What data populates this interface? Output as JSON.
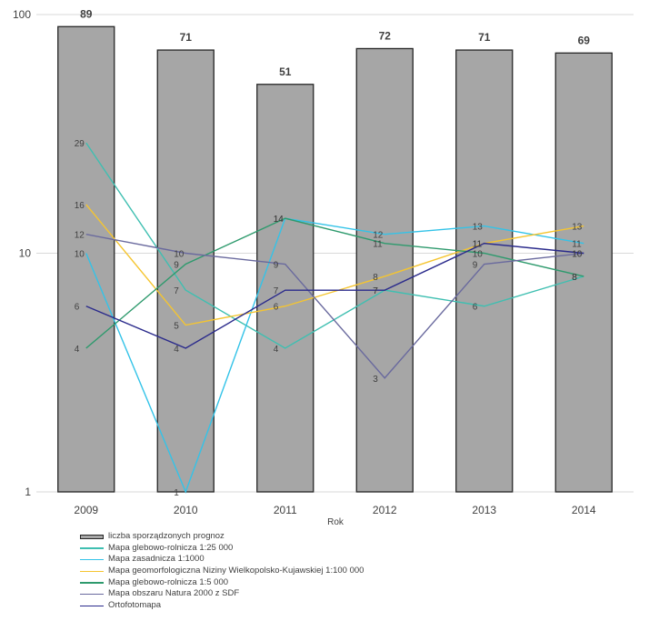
{
  "chart_data": {
    "type": "bar",
    "categories": [
      "2009",
      "2010",
      "2011",
      "2012",
      "2013",
      "2014"
    ],
    "xlabel": "Rok",
    "ylabel": "",
    "y_scale": "log",
    "ylim": [
      1,
      100
    ],
    "y_ticks": [
      "1",
      "10",
      "100"
    ],
    "grid": "horizontal",
    "legend_position": "bottom",
    "bar_series": {
      "name": "liczba sporządzonych prognoz",
      "values": [
        89,
        71,
        51,
        72,
        71,
        69
      ],
      "color": "#a6a6a6",
      "edge_color": "#262626"
    },
    "line_series": [
      {
        "name": "Mapa glebowo-rolnicza 1:25 000",
        "values": [
          29,
          7,
          4,
          7,
          6,
          8
        ],
        "color": "#3fbfb1"
      },
      {
        "name": "Mapa zasadnicza 1:1000",
        "values": [
          10,
          1,
          14,
          12,
          13,
          11
        ],
        "color": "#33c3e8"
      },
      {
        "name": "Mapa geomorfologiczna Niziny Wielkopolsko-Kujawskiej 1:100 000",
        "values": [
          16,
          5,
          6,
          8,
          11,
          13
        ],
        "color": "#f5c530"
      },
      {
        "name": "Mapa glebowo-rolnicza 1:5 000",
        "values": [
          4,
          9,
          14,
          11,
          10,
          8
        ],
        "color": "#2e9a6d"
      },
      {
        "name": "Mapa obszaru Natura 2000 z SDF",
        "values": [
          12,
          10,
          9,
          3,
          9,
          10
        ],
        "color": "#6a6a9e"
      },
      {
        "name": "Ortofotomapa",
        "values": [
          6,
          4,
          7,
          7,
          11,
          10
        ],
        "color": "#2b2b8c"
      }
    ]
  }
}
